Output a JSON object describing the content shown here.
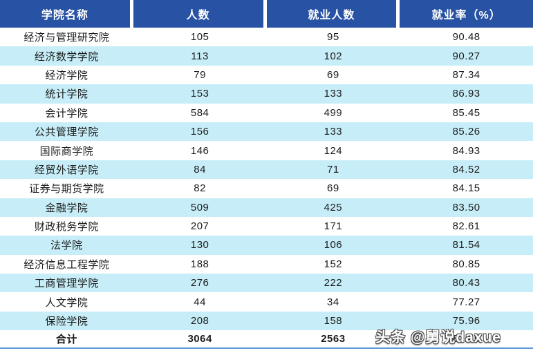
{
  "chart_data": {
    "type": "table",
    "title": "",
    "columns": [
      "学院名称",
      "人数",
      "就业人数",
      "就业率（%）"
    ],
    "rows": [
      [
        "经济与管理研究院",
        105,
        95,
        90.48
      ],
      [
        "经济数学学院",
        113,
        102,
        90.27
      ],
      [
        "经济学院",
        79,
        69,
        87.34
      ],
      [
        "统计学院",
        153,
        133,
        86.93
      ],
      [
        "会计学院",
        584,
        499,
        85.45
      ],
      [
        "公共管理学院",
        156,
        133,
        85.26
      ],
      [
        "国际商学院",
        146,
        124,
        84.93
      ],
      [
        "经贸外语学院",
        84,
        71,
        84.52
      ],
      [
        "证券与期货学院",
        82,
        69,
        84.15
      ],
      [
        "金融学院",
        509,
        425,
        83.5
      ],
      [
        "财政税务学院",
        207,
        171,
        82.61
      ],
      [
        "法学院",
        130,
        106,
        81.54
      ],
      [
        "经济信息工程学院",
        188,
        152,
        80.85
      ],
      [
        "工商管理学院",
        276,
        222,
        80.43
      ],
      [
        "人文学院",
        44,
        34,
        77.27
      ],
      [
        "保险学院",
        208,
        158,
        75.96
      ]
    ],
    "total_row": [
      "合计",
      3064,
      2563,
      83.65
    ],
    "layout": {
      "stripes": "alternating white / light-cyan",
      "header_position": "top"
    }
  },
  "table": {
    "headers": [
      "学院名称",
      "人数",
      "就业人数",
      "就业率（%）"
    ],
    "rows": [
      [
        "经济与管理研究院",
        "105",
        "95",
        "90.48"
      ],
      [
        "经济数学学院",
        "113",
        "102",
        "90.27"
      ],
      [
        "经济学院",
        "79",
        "69",
        "87.34"
      ],
      [
        "统计学院",
        "153",
        "133",
        "86.93"
      ],
      [
        "会计学院",
        "584",
        "499",
        "85.45"
      ],
      [
        "公共管理学院",
        "156",
        "133",
        "85.26"
      ],
      [
        "国际商学院",
        "146",
        "124",
        "84.93"
      ],
      [
        "经贸外语学院",
        "84",
        "71",
        "84.52"
      ],
      [
        "证券与期货学院",
        "82",
        "69",
        "84.15"
      ],
      [
        "金融学院",
        "509",
        "425",
        "83.50"
      ],
      [
        "财政税务学院",
        "207",
        "171",
        "82.61"
      ],
      [
        "法学院",
        "130",
        "106",
        "81.54"
      ],
      [
        "经济信息工程学院",
        "188",
        "152",
        "80.85"
      ],
      [
        "工商管理学院",
        "276",
        "222",
        "80.43"
      ],
      [
        "人文学院",
        "44",
        "34",
        "77.27"
      ],
      [
        "保险学院",
        "208",
        "158",
        "75.96"
      ]
    ],
    "total": [
      "合计",
      "3064",
      "2563",
      "83.65"
    ]
  },
  "watermark": "头条 @舅说daxue",
  "colors": {
    "header_bg": "#2852a3",
    "header_text": "#ffffff",
    "stripe_bg": "#c7eef8",
    "body_text": "#1c1c1c",
    "bottom_rule": "#5b9bd5"
  }
}
